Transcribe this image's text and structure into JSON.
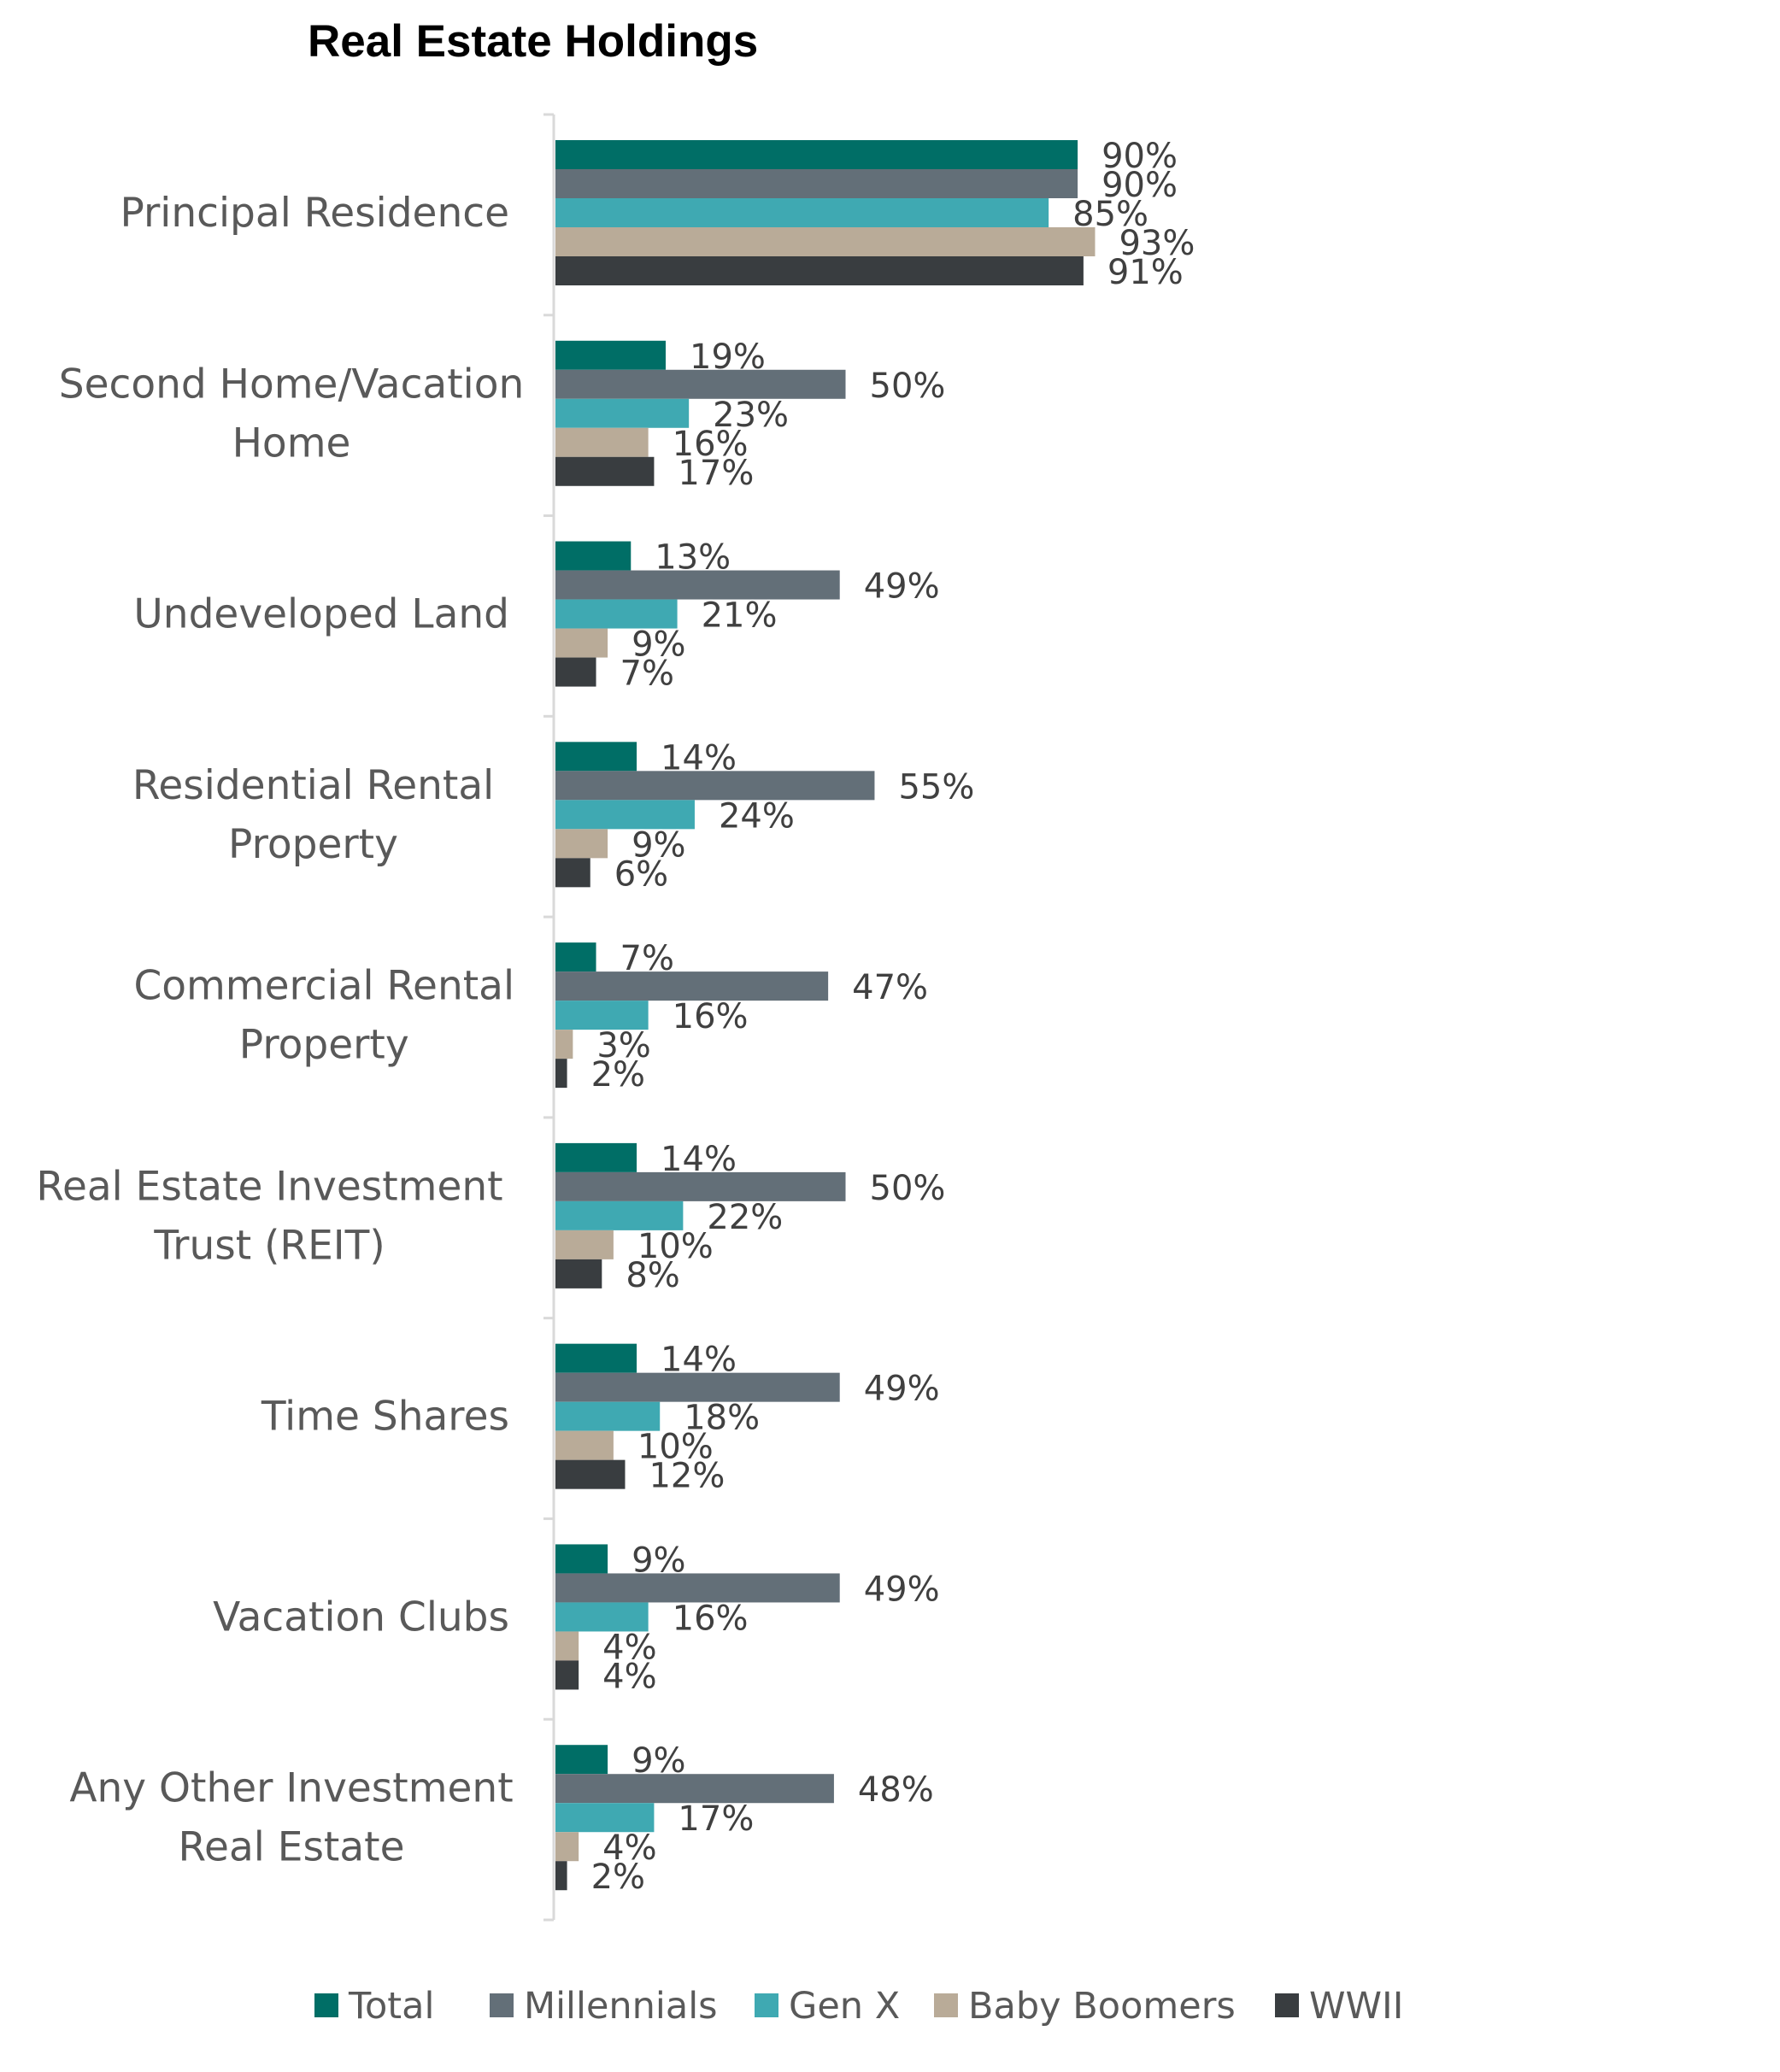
{
  "chart_data": {
    "type": "bar",
    "orientation": "horizontal",
    "title": "Real Estate Holdings",
    "categories": [
      "Principal Residence",
      "Second Home/Vacation Home",
      "Undeveloped Land",
      "Residential Rental Property",
      "Commercial Rental Property",
      "Real Estate Investment Trust (REIT)",
      "Time Shares",
      "Vacation Clubs",
      "Any Other Investment Real Estate"
    ],
    "category_lines": [
      [
        "Principal Residence"
      ],
      [
        "Second Home/Vacation",
        "Home"
      ],
      [
        "Undeveloped Land"
      ],
      [
        "Residential Rental",
        "Property"
      ],
      [
        "Commercial Rental",
        "Property"
      ],
      [
        "Real Estate Investment",
        "Trust (REIT)"
      ],
      [
        "Time Shares"
      ],
      [
        "Vacation Clubs"
      ],
      [
        "Any Other Investment",
        "Real Estate"
      ]
    ],
    "series": [
      {
        "name": "Total",
        "color": "#006e66",
        "values": [
          90,
          19,
          13,
          14,
          7,
          14,
          14,
          9,
          9
        ]
      },
      {
        "name": "Millennials",
        "color": "#636f78",
        "values": [
          90,
          50,
          49,
          55,
          47,
          50,
          49,
          49,
          48
        ]
      },
      {
        "name": "Gen X",
        "color": "#3fa9b2",
        "values": [
          85,
          23,
          21,
          24,
          16,
          22,
          18,
          16,
          17
        ]
      },
      {
        "name": "Baby Boomers",
        "color": "#b9ab98",
        "values": [
          93,
          16,
          9,
          9,
          3,
          10,
          10,
          4,
          4
        ]
      },
      {
        "name": "WWII",
        "color": "#393d40",
        "values": [
          91,
          17,
          7,
          6,
          2,
          8,
          12,
          4,
          2
        ]
      }
    ],
    "value_suffix": "%",
    "xlim": [
      0,
      100
    ],
    "x_axis_visible": false,
    "grid": false,
    "legend_position": "bottom"
  }
}
